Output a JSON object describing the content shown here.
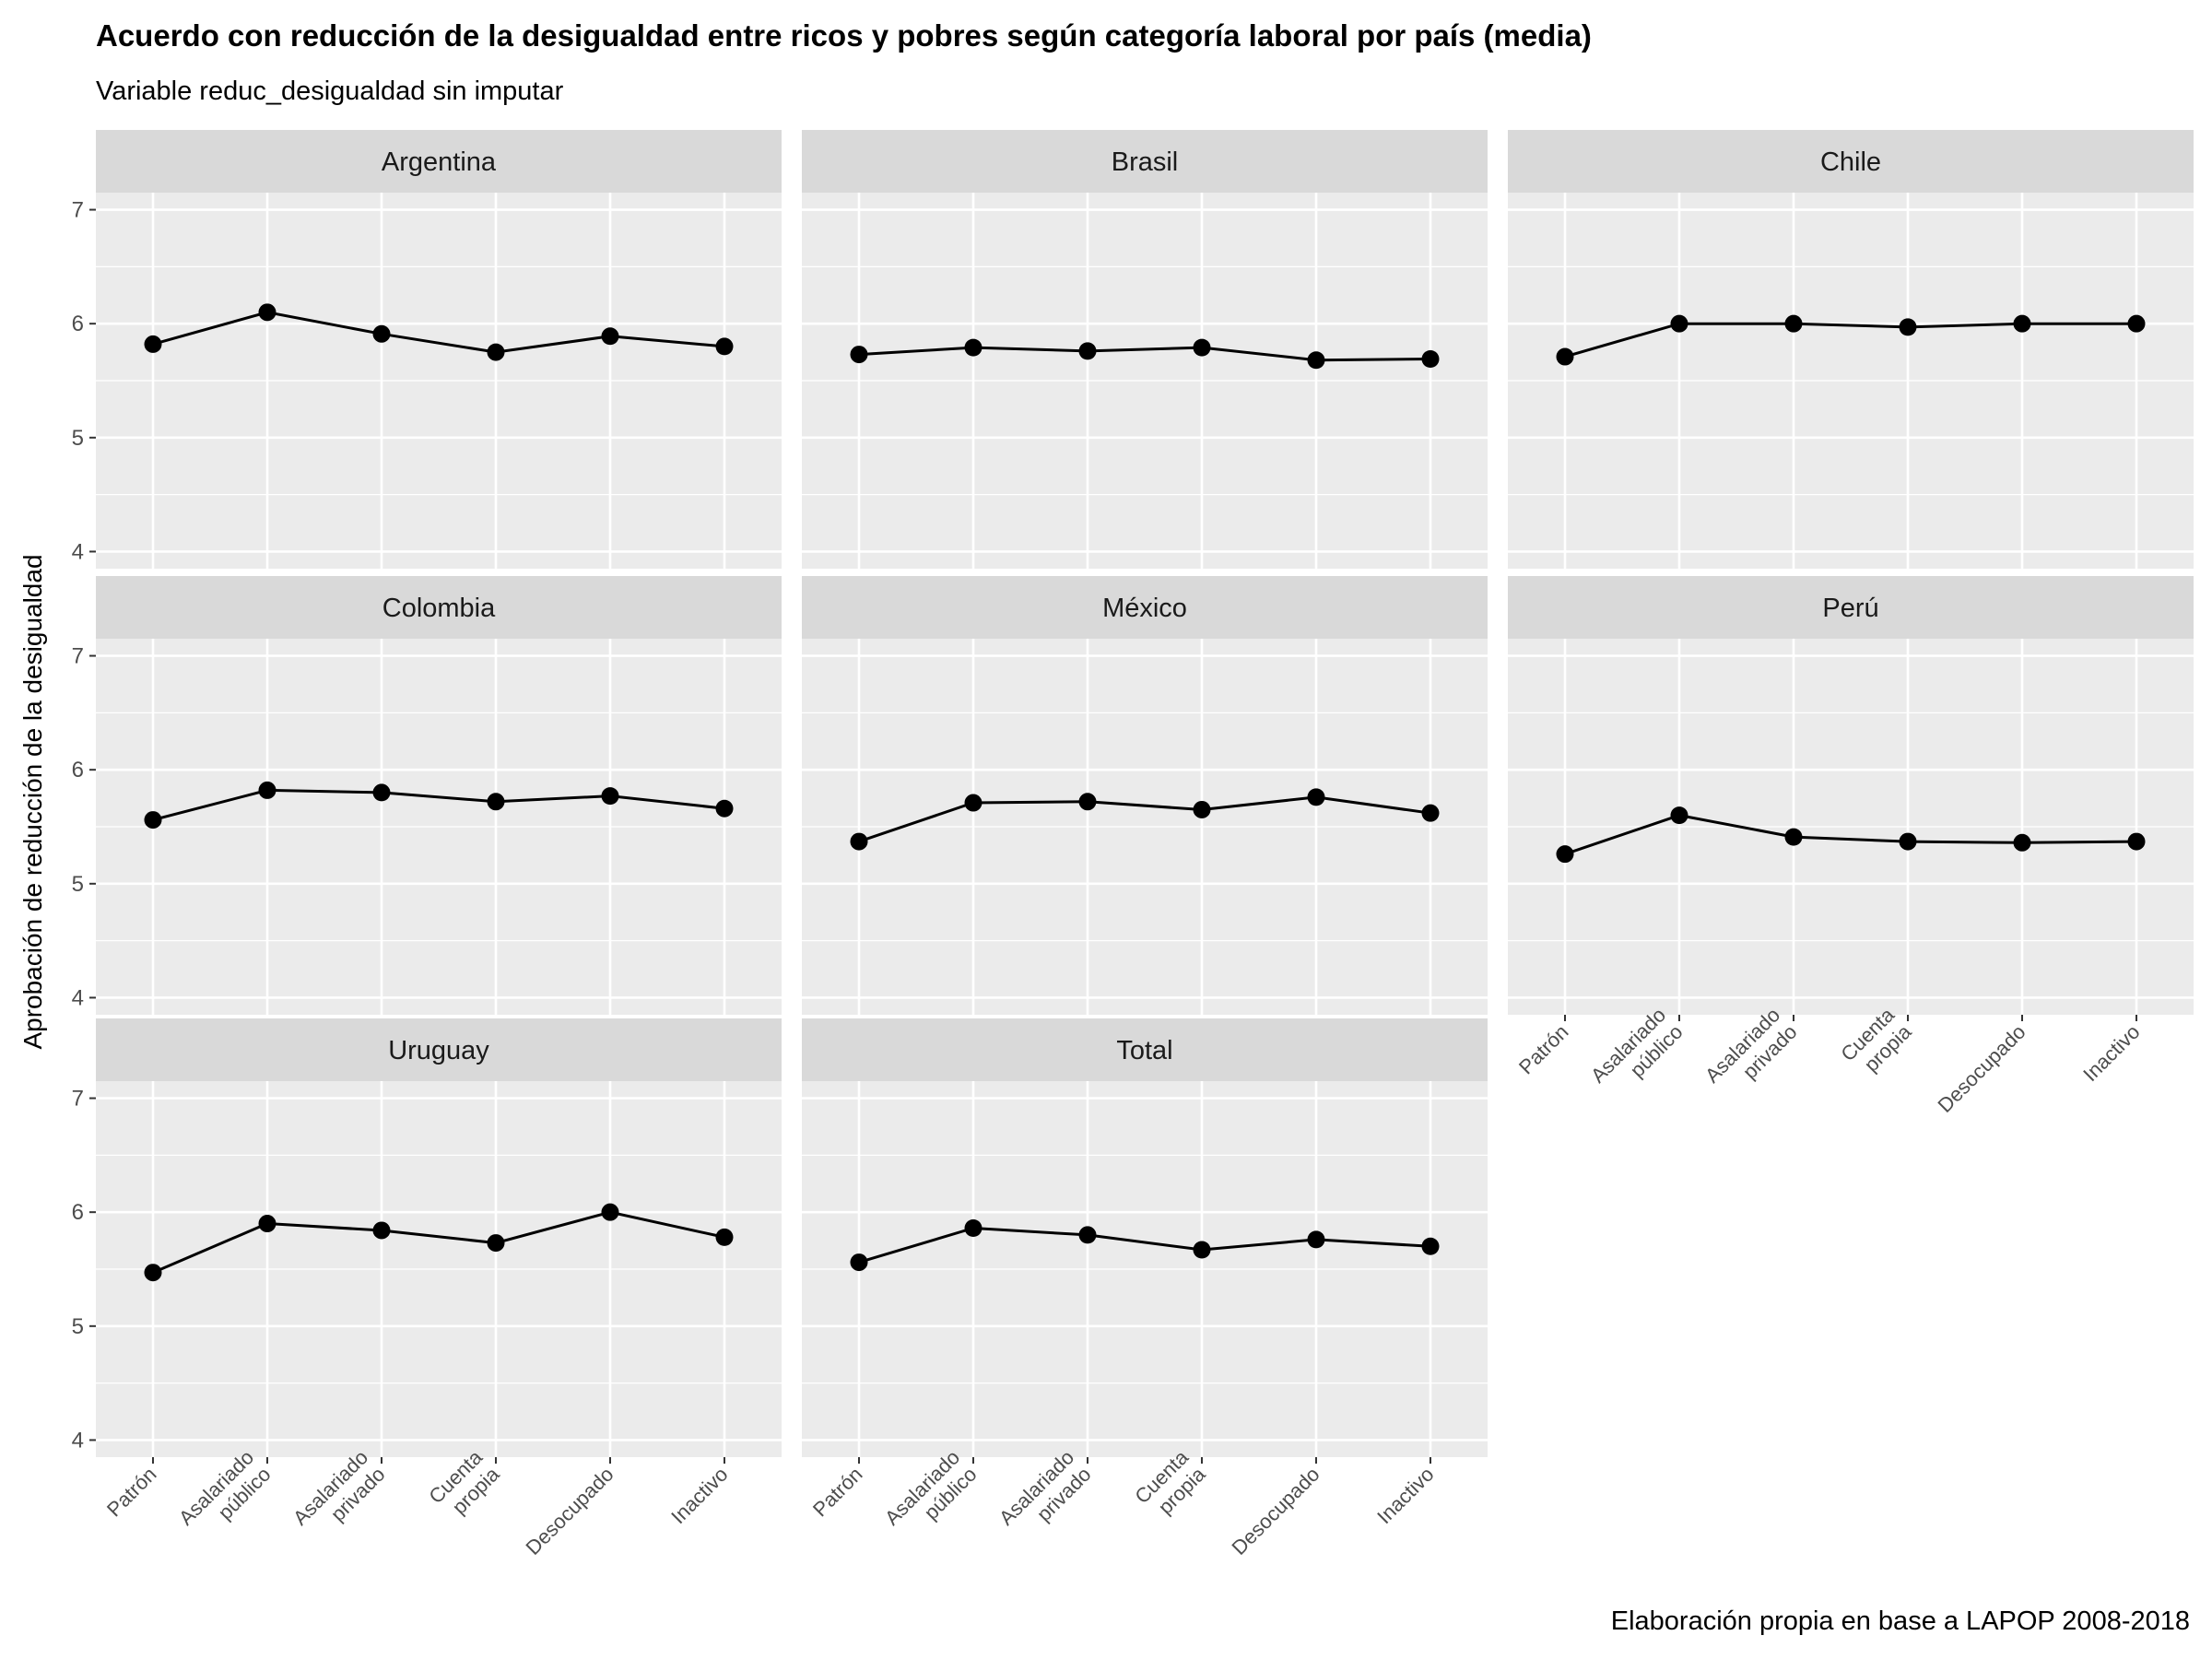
{
  "chart_data": {
    "type": "line",
    "title": "Acuerdo con reducción de la desigualdad entre ricos y pobres según categoría laboral por país (media)",
    "subtitle": "Variable reduc_desigualdad sin imputar",
    "caption": "Elaboración propia en base a LAPOP 2008-2018",
    "ylabel": "Aprobación de reducción de la desigualdad",
    "xlabel": "",
    "ylim": [
      3.85,
      7.15
    ],
    "yticks": [
      4,
      5,
      6,
      7
    ],
    "grid": true,
    "categories": [
      "Patrón",
      "Asalariado\npúblico",
      "Asalariado\nprivado",
      "Cuenta\npropia",
      "Desocupado",
      "Inactivo"
    ],
    "category_lines": [
      [
        "Patrón"
      ],
      [
        "Asalariado",
        "público"
      ],
      [
        "Asalariado",
        "privado"
      ],
      [
        "Cuenta",
        "propia"
      ],
      [
        "Desocupado"
      ],
      [
        "Inactivo"
      ]
    ],
    "facets": [
      {
        "name": "Argentina",
        "values": [
          5.82,
          6.1,
          5.91,
          5.75,
          5.89,
          5.8
        ]
      },
      {
        "name": "Brasil",
        "values": [
          5.73,
          5.79,
          5.76,
          5.79,
          5.68,
          5.69
        ]
      },
      {
        "name": "Chile",
        "values": [
          5.71,
          6.0,
          6.0,
          5.97,
          6.0,
          6.0
        ]
      },
      {
        "name": "Colombia",
        "values": [
          5.56,
          5.82,
          5.8,
          5.72,
          5.77,
          5.66
        ]
      },
      {
        "name": "México",
        "values": [
          5.37,
          5.71,
          5.72,
          5.65,
          5.76,
          5.62
        ]
      },
      {
        "name": "Perú",
        "values": [
          5.26,
          5.6,
          5.41,
          5.37,
          5.36,
          5.37
        ]
      },
      {
        "name": "Uruguay",
        "values": [
          5.47,
          5.9,
          5.84,
          5.73,
          6.0,
          5.78
        ]
      },
      {
        "name": "Total",
        "values": [
          5.56,
          5.86,
          5.8,
          5.67,
          5.76,
          5.7
        ]
      }
    ]
  }
}
